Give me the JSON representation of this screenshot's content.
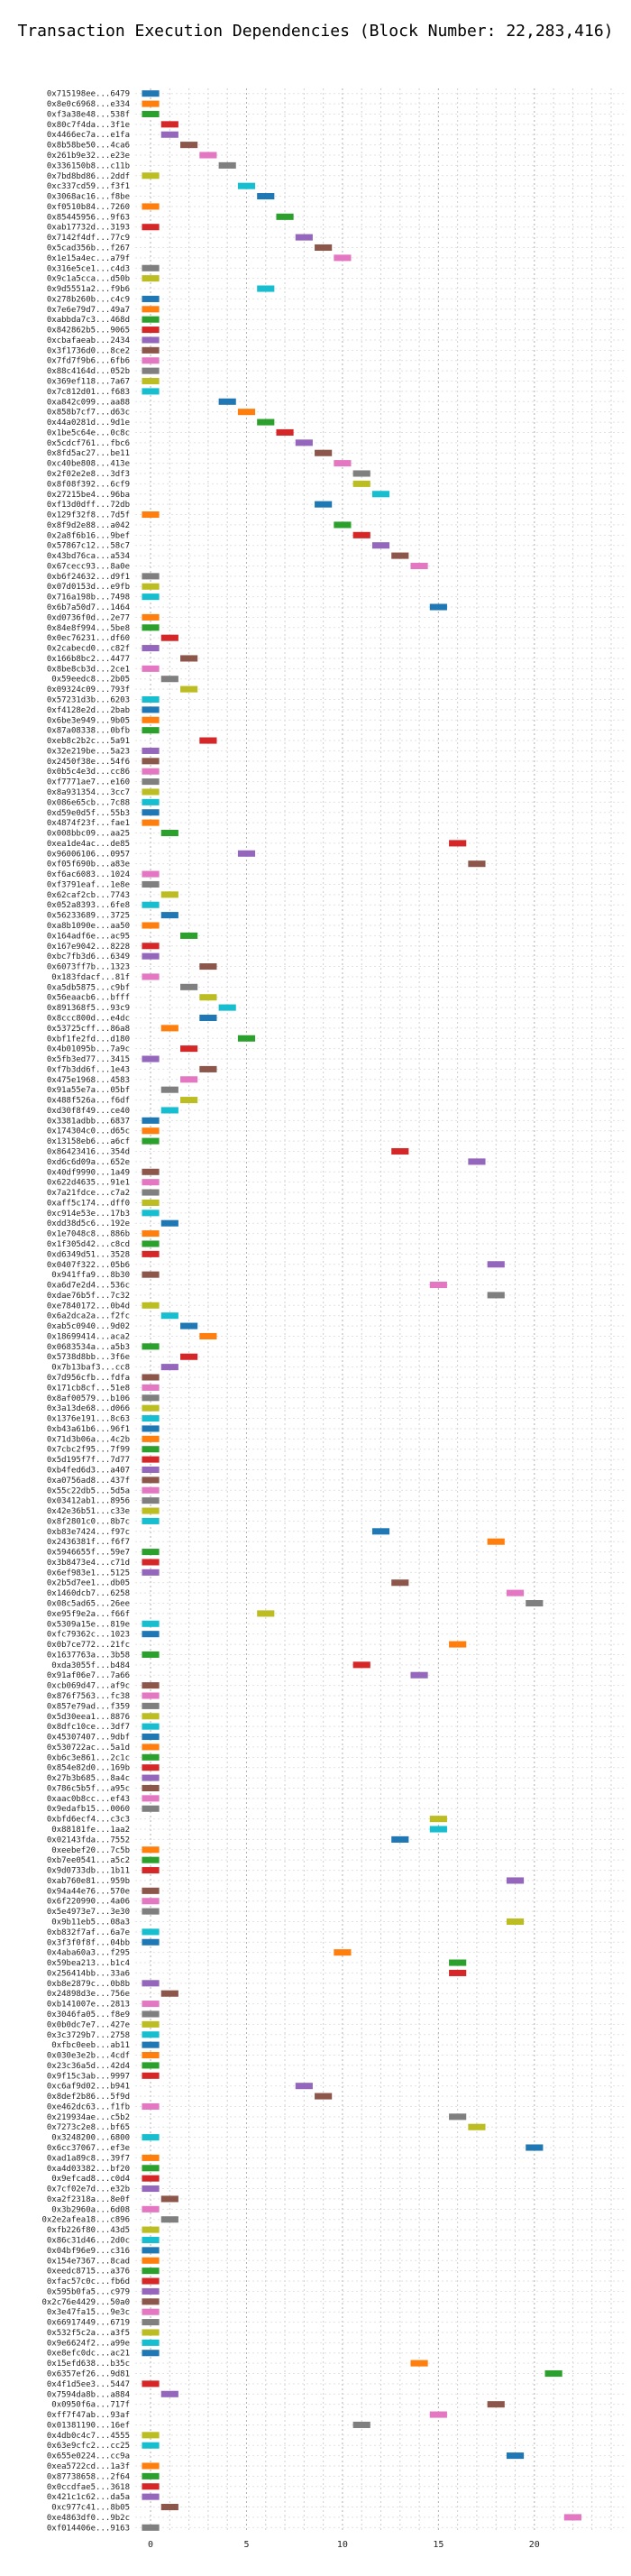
{
  "chart_data": {
    "type": "bar",
    "title": "Transaction Execution Dependencies (Block Number: 22,283,416)",
    "xlabel": "",
    "ylabel": "",
    "xlim": [
      -0.8,
      24.8
    ],
    "xticks": [
      0,
      5,
      10,
      15,
      20
    ],
    "grid": true,
    "palette": [
      "#1f77b4",
      "#ff7f0e",
      "#2ca02c",
      "#d62728",
      "#9467bd",
      "#8c564b",
      "#e377c2",
      "#7f7f7f",
      "#bcbd22",
      "#17becf"
    ],
    "rows": [
      {
        "label": "0x715198ee...6479",
        "x": 0
      },
      {
        "label": "0x8e0c6968...e334",
        "x": 0
      },
      {
        "label": "0xf3a38e48...538f",
        "x": 0
      },
      {
        "label": "0x80c7f4da...3f1e",
        "x": 1
      },
      {
        "label": "0x4466ec7a...e1fa",
        "x": 1
      },
      {
        "label": "0x8b58be50...4ca6",
        "x": 2
      },
      {
        "label": "0x261b9e32...e23e",
        "x": 3
      },
      {
        "label": "0x336150b8...c11b",
        "x": 4
      },
      {
        "label": "0x7bd8bd86...2ddf",
        "x": 0
      },
      {
        "label": "0xc337cd59...f3f1",
        "x": 5
      },
      {
        "label": "0x3068ac16...f8be",
        "x": 6
      },
      {
        "label": "0xf0510b84...7260",
        "x": 0
      },
      {
        "label": "0x85445956...9f63",
        "x": 7
      },
      {
        "label": "0xab17732d...3193",
        "x": 0
      },
      {
        "label": "0x7142f4df...77c9",
        "x": 8
      },
      {
        "label": "0x5cad356b...f267",
        "x": 9
      },
      {
        "label": "0x1e15a4ec...a79f",
        "x": 10
      },
      {
        "label": "0x316e5ce1...c4d3",
        "x": 0
      },
      {
        "label": "0x9c1a5cca...d50b",
        "x": 0
      },
      {
        "label": "0x9d5551a2...f9b6",
        "x": 6
      },
      {
        "label": "0x278b260b...c4c9",
        "x": 0
      },
      {
        "label": "0x7e6e79d7...49a7",
        "x": 0
      },
      {
        "label": "0xabbda7c3...468d",
        "x": 0
      },
      {
        "label": "0x842862b5...9065",
        "x": 0
      },
      {
        "label": "0xcbafaeab...2434",
        "x": 0
      },
      {
        "label": "0x3f1736d0...8ce2",
        "x": 0
      },
      {
        "label": "0x7fd7f9b6...6fb6",
        "x": 0
      },
      {
        "label": "0x88c4164d...052b",
        "x": 0
      },
      {
        "label": "0x369ef118...7a67",
        "x": 0
      },
      {
        "label": "0x7c812d01...f683",
        "x": 0
      },
      {
        "label": "0xa842c099...aa88",
        "x": 4
      },
      {
        "label": "0x858b7cf7...d63c",
        "x": 5
      },
      {
        "label": "0x44a0281d...9d1e",
        "x": 6
      },
      {
        "label": "0x1be5c64e...0c8c",
        "x": 7
      },
      {
        "label": "0x5cdcf761...fbc6",
        "x": 8
      },
      {
        "label": "0x8fd5ac27...be11",
        "x": 9
      },
      {
        "label": "0xc40be808...413e",
        "x": 10
      },
      {
        "label": "0x2f02e2e8...3df3",
        "x": 11
      },
      {
        "label": "0x8f08f392...6cf9",
        "x": 11
      },
      {
        "label": "0x27215be4...96ba",
        "x": 12
      },
      {
        "label": "0xf13d0dff...72db",
        "x": 9
      },
      {
        "label": "0x129f32f8...7d5f",
        "x": 0
      },
      {
        "label": "0x8f9d2e88...a042",
        "x": 10
      },
      {
        "label": "0x2a8f6b16...9bef",
        "x": 11
      },
      {
        "label": "0x57867c12...58c7",
        "x": 12
      },
      {
        "label": "0x43bd76ca...a534",
        "x": 13
      },
      {
        "label": "0x67cecc93...8a0e",
        "x": 14
      },
      {
        "label": "0xb6f24632...d9f1",
        "x": 0
      },
      {
        "label": "0x07d0153d...e9fb",
        "x": 0
      },
      {
        "label": "0x716a198b...7498",
        "x": 0
      },
      {
        "label": "0x6b7a50d7...1464",
        "x": 15
      },
      {
        "label": "0xd0736f0d...2e77",
        "x": 0
      },
      {
        "label": "0x84e8f994...5be8",
        "x": 0
      },
      {
        "label": "0x0ec76231...df60",
        "x": 1
      },
      {
        "label": "0x2cabecd0...c82f",
        "x": 0
      },
      {
        "label": "0x166b8bc2...4477",
        "x": 2
      },
      {
        "label": "0x8be8cb3d...2ce1",
        "x": 0
      },
      {
        "label": "0x59eedc8...2b05",
        "x": 1
      },
      {
        "label": "0x09324c09...793f",
        "x": 2
      },
      {
        "label": "0x57231d3b...6203",
        "x": 0
      },
      {
        "label": "0xf4128e2d...2bab",
        "x": 0
      },
      {
        "label": "0x6be3e949...9b05",
        "x": 0
      },
      {
        "label": "0x87a08338...0bfb",
        "x": 0
      },
      {
        "label": "0xeb8c2b2c...5a91",
        "x": 3
      },
      {
        "label": "0x32e219be...5a23",
        "x": 0
      },
      {
        "label": "0x2450f38e...54f6",
        "x": 0
      },
      {
        "label": "0x0b5c4e3d...cc86",
        "x": 0
      },
      {
        "label": "0xf7771ae7...e160",
        "x": 0
      },
      {
        "label": "0x8a931354...3cc7",
        "x": 0
      },
      {
        "label": "0x086e65cb...7c88",
        "x": 0
      },
      {
        "label": "0xd59e0d5f...55b3",
        "x": 0
      },
      {
        "label": "0x4874f23f...fae1",
        "x": 0
      },
      {
        "label": "0x008bbc09...aa25",
        "x": 1
      },
      {
        "label": "0xea1de4ac...de85",
        "x": 16
      },
      {
        "label": "0x96006106...0957",
        "x": 5
      },
      {
        "label": "0xf05f690b...a83e",
        "x": 17
      },
      {
        "label": "0xf6ac6083...1024",
        "x": 0
      },
      {
        "label": "0xf3791eaf...1e8e",
        "x": 0
      },
      {
        "label": "0x62caf2cb...7743",
        "x": 1
      },
      {
        "label": "0x052a8393...6fe8",
        "x": 0
      },
      {
        "label": "0x56233689...3725",
        "x": 1
      },
      {
        "label": "0xa8b1090e...aa50",
        "x": 0
      },
      {
        "label": "0x164adf6e...ac95",
        "x": 2
      },
      {
        "label": "0x167e9042...8228",
        "x": 0
      },
      {
        "label": "0xbc7fb3d6...6349",
        "x": 0
      },
      {
        "label": "0x6073ff7b...1323",
        "x": 3
      },
      {
        "label": "0x183fdacf...81f",
        "x": 0
      },
      {
        "label": "0xa5db5875...c9bf",
        "x": 2
      },
      {
        "label": "0x56eaacb6...bfff",
        "x": 3
      },
      {
        "label": "0x891368f5...93c9",
        "x": 4
      },
      {
        "label": "0x8ccc800d...e4dc",
        "x": 3
      },
      {
        "label": "0x53725cff...86a8",
        "x": 1
      },
      {
        "label": "0xbf1fe2fd...d180",
        "x": 5
      },
      {
        "label": "0x4b01095b...7a9c",
        "x": 2
      },
      {
        "label": "0x5fb3ed77...3415",
        "x": 0
      },
      {
        "label": "0xf7b3dd6f...1e43",
        "x": 3
      },
      {
        "label": "0x475e1968...4583",
        "x": 2
      },
      {
        "label": "0x91a55e7a...05bf",
        "x": 1
      },
      {
        "label": "0x488f526a...f6df",
        "x": 2
      },
      {
        "label": "0xd30f8f49...ce40",
        "x": 1
      },
      {
        "label": "0x3381adbb...6837",
        "x": 0
      },
      {
        "label": "0x174304c0...d65c",
        "x": 0
      },
      {
        "label": "0x13158eb6...a6cf",
        "x": 0
      },
      {
        "label": "0x86423416...354d",
        "x": 13
      },
      {
        "label": "0xd6c6d09a...652e",
        "x": 17
      },
      {
        "label": "0x40df9990...1a49",
        "x": 0
      },
      {
        "label": "0x622d4635...91e1",
        "x": 0
      },
      {
        "label": "0x7a21fdce...c7a2",
        "x": 0
      },
      {
        "label": "0xaff5c174...dff0",
        "x": 0
      },
      {
        "label": "0xc914e53e...17b3",
        "x": 0
      },
      {
        "label": "0xdd38d5c6...192e",
        "x": 1
      },
      {
        "label": "0x1e7048c8...886b",
        "x": 0
      },
      {
        "label": "0x1f305d42...c8cd",
        "x": 0
      },
      {
        "label": "0xd6349d51...3528",
        "x": 0
      },
      {
        "label": "0x0407f322...05b6",
        "x": 18
      },
      {
        "label": "0x941ffa9...8b30",
        "x": 0
      },
      {
        "label": "0xa6d7e2d4...536c",
        "x": 15
      },
      {
        "label": "0xdae76b5f...7c32",
        "x": 18
      },
      {
        "label": "0xe7840172...0b4d",
        "x": 0
      },
      {
        "label": "0x6a2dca2a...f2fc",
        "x": 1
      },
      {
        "label": "0xab5c0940...9d02",
        "x": 2
      },
      {
        "label": "0x18699414...aca2",
        "x": 3
      },
      {
        "label": "0x0683534a...a5b3",
        "x": 0
      },
      {
        "label": "0x5738d8bb...3f6e",
        "x": 2
      },
      {
        "label": "0x7b13baf3...cc8",
        "x": 1
      },
      {
        "label": "0x7d956cfb...fdfa",
        "x": 0
      },
      {
        "label": "0x171cb8cf...51e8",
        "x": 0
      },
      {
        "label": "0x8af00579...b106",
        "x": 0
      },
      {
        "label": "0x3a13de68...d066",
        "x": 0
      },
      {
        "label": "0x1376e191...8c63",
        "x": 0
      },
      {
        "label": "0xb43a61b6...96f1",
        "x": 0
      },
      {
        "label": "0x71d3b06a...4c2b",
        "x": 0
      },
      {
        "label": "0x7cbc2f95...7f99",
        "x": 0
      },
      {
        "label": "0x5d195f7f...7d77",
        "x": 0
      },
      {
        "label": "0xb4fed6d3...a407",
        "x": 0
      },
      {
        "label": "0xa0756ad8...437f",
        "x": 0
      },
      {
        "label": "0x55c22db5...5d5a",
        "x": 0
      },
      {
        "label": "0x03412ab1...8956",
        "x": 0
      },
      {
        "label": "0x42e36b51...c33e",
        "x": 0
      },
      {
        "label": "0x8f2801c0...8b7c",
        "x": 0
      },
      {
        "label": "0xb83e7424...f97c",
        "x": 12
      },
      {
        "label": "0x2436381f...f6f7",
        "x": 18
      },
      {
        "label": "0x5946655f...59e7",
        "x": 0
      },
      {
        "label": "0x3b8473e4...c71d",
        "x": 0
      },
      {
        "label": "0x6ef983e1...5125",
        "x": 0
      },
      {
        "label": "0x2b5d7ee1...db05",
        "x": 13
      },
      {
        "label": "0x1460dcb7...6258",
        "x": 19
      },
      {
        "label": "0x08c5ad65...26ee",
        "x": 20
      },
      {
        "label": "0xe95f9e2a...f66f",
        "x": 6
      },
      {
        "label": "0x5309a15e...819e",
        "x": 0
      },
      {
        "label": "0xfc79362c...1023",
        "x": 0
      },
      {
        "label": "0x0b7ce772...21fc",
        "x": 16
      },
      {
        "label": "0x1637763a...3b58",
        "x": 0
      },
      {
        "label": "0xda3055f...b484",
        "x": 11
      },
      {
        "label": "0x91af06e7...7a66",
        "x": 14
      },
      {
        "label": "0xcb069d47...af9c",
        "x": 0
      },
      {
        "label": "0x876f7563...fc38",
        "x": 0
      },
      {
        "label": "0x857e79ad...f359",
        "x": 0
      },
      {
        "label": "0x5d30eea1...8876",
        "x": 0
      },
      {
        "label": "0x8dfc10ce...3df7",
        "x": 0
      },
      {
        "label": "0x45307407...9dbf",
        "x": 0
      },
      {
        "label": "0x530722ac...5a1d",
        "x": 0
      },
      {
        "label": "0xb6c3e861...2c1c",
        "x": 0
      },
      {
        "label": "0x854e82d0...169b",
        "x": 0
      },
      {
        "label": "0x27b3b685...8a4c",
        "x": 0
      },
      {
        "label": "0x786c5b5f...a95c",
        "x": 0
      },
      {
        "label": "0xaac0b8cc...ef43",
        "x": 0
      },
      {
        "label": "0x9edafb15...0060",
        "x": 0
      },
      {
        "label": "0xbfd6ecf4...c3c3",
        "x": 15
      },
      {
        "label": "0x88181fe...1aa2",
        "x": 15
      },
      {
        "label": "0x02143fda...7552",
        "x": 13
      },
      {
        "label": "0xeebef20...7c5b",
        "x": 0
      },
      {
        "label": "0xb7ee0541...a5c2",
        "x": 0
      },
      {
        "label": "0x9d0733db...1b11",
        "x": 0
      },
      {
        "label": "0xab760e81...959b",
        "x": 19
      },
      {
        "label": "0x94a44e76...570e",
        "x": 0
      },
      {
        "label": "0x6f220990...4a06",
        "x": 0
      },
      {
        "label": "0x5e4973e7...3e30",
        "x": 0
      },
      {
        "label": "0x9b11eb5...08a3",
        "x": 19
      },
      {
        "label": "0xb832f7af...6a7e",
        "x": 0
      },
      {
        "label": "0x3f3f0f8f...04bb",
        "x": 0
      },
      {
        "label": "0x4aba60a3...f295",
        "x": 10
      },
      {
        "label": "0x59bea213...b1c4",
        "x": 16
      },
      {
        "label": "0x256414bb...33a6",
        "x": 16
      },
      {
        "label": "0xb8e2879c...0b8b",
        "x": 0
      },
      {
        "label": "0x24898d3e...756e",
        "x": 1
      },
      {
        "label": "0xb141007e...2813",
        "x": 0
      },
      {
        "label": "0x3046fa05...f8e9",
        "x": 0
      },
      {
        "label": "0x0b0dc7e7...427e",
        "x": 0
      },
      {
        "label": "0x3c3729b7...2758",
        "x": 0
      },
      {
        "label": "0xfbc0eeb...ab11",
        "x": 0
      },
      {
        "label": "0x030e3e2b...4cdf",
        "x": 0
      },
      {
        "label": "0x23c36a5d...42d4",
        "x": 0
      },
      {
        "label": "0x9f15c3ab...9997",
        "x": 0
      },
      {
        "label": "0xc6af9d02...b941",
        "x": 8
      },
      {
        "label": "0x8def2b86...5f9d",
        "x": 9
      },
      {
        "label": "0xe462dc63...f1fb",
        "x": 0
      },
      {
        "label": "0x219934ae...c5b2",
        "x": 16
      },
      {
        "label": "0x7273c2e8...bf65",
        "x": 17
      },
      {
        "label": "0x3248200...6800",
        "x": 0
      },
      {
        "label": "0x6cc37067...ef3e",
        "x": 20
      },
      {
        "label": "0xad1a89c8...39f7",
        "x": 0
      },
      {
        "label": "0xa4d03382...bf20",
        "x": 0
      },
      {
        "label": "0x9efcad8...c0d4",
        "x": 0
      },
      {
        "label": "0x7cf02e7d...e32b",
        "x": 0
      },
      {
        "label": "0xa2f2318a...8e0f",
        "x": 1
      },
      {
        "label": "0x3b2960a...6d08",
        "x": 0
      },
      {
        "label": "0x2e2afea18...c896",
        "x": 1
      },
      {
        "label": "0xfb226f80...43d5",
        "x": 0
      },
      {
        "label": "0x86c31d46...2d0c",
        "x": 0
      },
      {
        "label": "0x04bf96e9...c316",
        "x": 0
      },
      {
        "label": "0x154e7367...8cad",
        "x": 0
      },
      {
        "label": "0xeedc8715...a376",
        "x": 0
      },
      {
        "label": "0xfac57c0c...fb6d",
        "x": 0
      },
      {
        "label": "0x595b0fa5...c979",
        "x": 0
      },
      {
        "label": "0x2c76e4429...50a0",
        "x": 0
      },
      {
        "label": "0x3e47fa15...9e3c",
        "x": 0
      },
      {
        "label": "0x66917449...6719",
        "x": 0
      },
      {
        "label": "0x532f5c2a...a3f5",
        "x": 0
      },
      {
        "label": "0x9e6624f2...a99e",
        "x": 0
      },
      {
        "label": "0xe8efc0dc...ac21",
        "x": 0
      },
      {
        "label": "0x15efd638...b35c",
        "x": 14
      },
      {
        "label": "0x6357ef26...9d81",
        "x": 21
      },
      {
        "label": "0x4f1d5ee3...5447",
        "x": 0
      },
      {
        "label": "0x7594da8b...a884",
        "x": 1
      },
      {
        "label": "0x0950f6a...717f",
        "x": 18
      },
      {
        "label": "0xff7f47ab...93af",
        "x": 15
      },
      {
        "label": "0x01381190...16ef",
        "x": 11
      },
      {
        "label": "0x4db0c4c7...4555",
        "x": 0
      },
      {
        "label": "0x63e9cfc2...cc25",
        "x": 0
      },
      {
        "label": "0x655e0224...cc9a",
        "x": 19
      },
      {
        "label": "0xea5722cd...1a3f",
        "x": 0
      },
      {
        "label": "0x87738658...2f64",
        "x": 0
      },
      {
        "label": "0x0ccdfae5...3618",
        "x": 0
      },
      {
        "label": "0x421c1c62...da5a",
        "x": 0
      },
      {
        "label": "0xc977c41...8b05",
        "x": 1
      },
      {
        "label": "0xe4863df0...9b2c",
        "x": 22
      },
      {
        "label": "0xf014406e...9163",
        "x": 0
      }
    ]
  }
}
